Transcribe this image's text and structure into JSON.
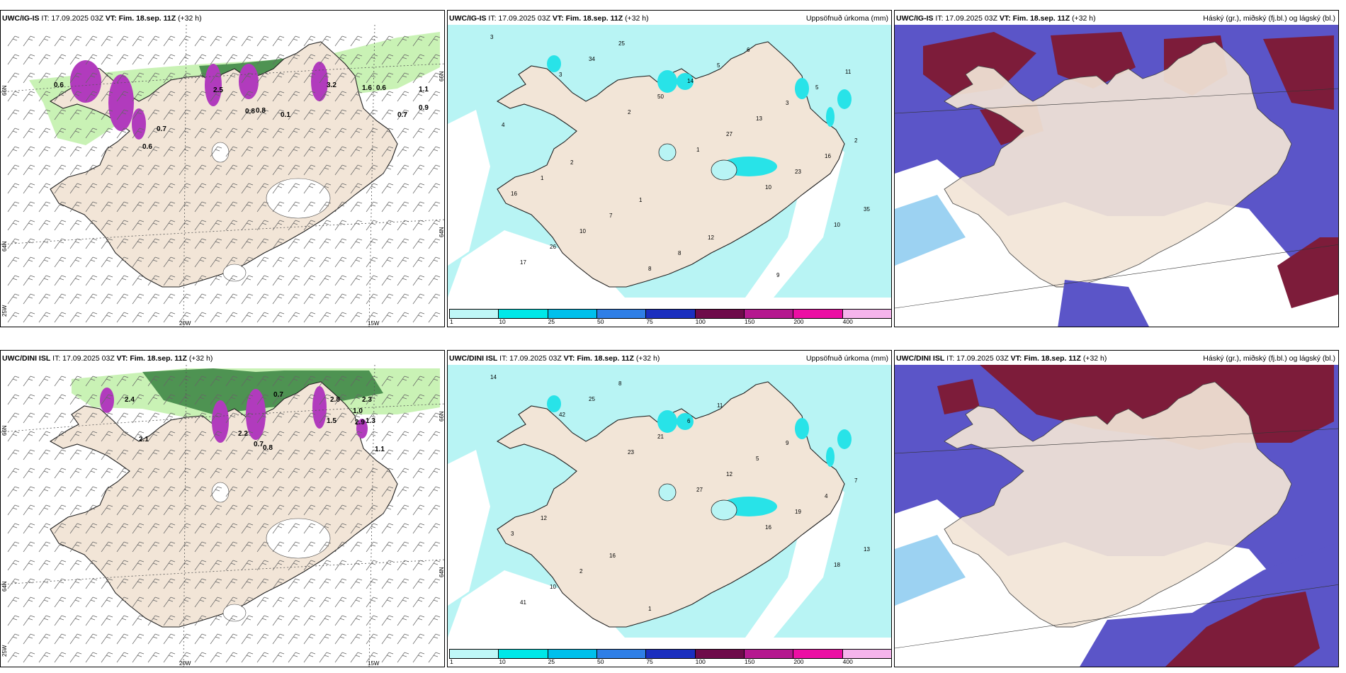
{
  "rows": [
    {
      "model": "UWC/IG-IS",
      "it": "IT: 17.09.2025 03Z",
      "vt": "VT: Fim. 18.sep. 11Z",
      "lead": "(+32 h)",
      "wind_values": [
        "0.6",
        "2.5",
        "3.2",
        "1.6",
        "0.6",
        "1.1",
        "0.7",
        "0.9",
        "0.8",
        "0.7",
        "0.6",
        "0.1",
        "0.8"
      ],
      "precip_values": [
        "3",
        "3",
        "2",
        "1",
        "10",
        "10",
        "17",
        "34",
        "50",
        "27",
        "23",
        "35",
        "26",
        "25",
        "14",
        "13",
        "16",
        "16",
        "10",
        "8",
        "5",
        "3",
        "2",
        "1",
        "7",
        "8",
        "6",
        "5",
        "4",
        "2",
        "1",
        "12",
        "9",
        "11"
      ]
    },
    {
      "model": "UWC/DINI ISL",
      "it": "IT: 17.09.2025 03Z",
      "vt": "VT: Fim. 18.sep. 11Z",
      "lead": "(+32 h)",
      "wind_values": [
        "2.4",
        "0.7",
        "2.8",
        "2.3",
        "1.0",
        "1.5",
        "2.9",
        "1.3",
        "1.1",
        "0.7",
        "2.2",
        "0.8",
        "2.1"
      ],
      "precip_values": [
        "14",
        "42",
        "23",
        "27",
        "16",
        "18",
        "41",
        "25",
        "21",
        "12",
        "19",
        "13",
        "10",
        "8",
        "6",
        "5",
        "4",
        "3",
        "2",
        "1",
        "11",
        "9",
        "7",
        "12",
        "16"
      ]
    }
  ],
  "labels": {
    "precip_title": "Uppsöfnuð úrkoma (mm)",
    "cloud_title": "Háský (gr.), miðský (fj.bl.) og lágský (bl.)"
  },
  "axis": {
    "lat_top": "66N",
    "lat_mid": "64N",
    "lat_bot": "25W",
    "lon_20": "20W",
    "lon_15": "15W",
    "lat_right_top": "66N",
    "lat_right_mid": "64N"
  },
  "precip_legend": {
    "ticks": [
      "1",
      "10",
      "25",
      "50",
      "75",
      "100",
      "150",
      "200",
      "400"
    ],
    "colors": [
      "#bff7f7",
      "#00e8e8",
      "#00c0ec",
      "#2f7fe6",
      "#1b2fbf",
      "#6e0b4a",
      "#b5188f",
      "#ec0fa4",
      "#f5b4ec"
    ]
  },
  "colors": {
    "land": "#f2e5d7",
    "precip_fill": "#b8f4f4",
    "cloud_high": "#7d1c3a",
    "cloud_mid": "#5b55c8",
    "cloud_low": "#9cd2f2",
    "green_light": "#c9f2b5",
    "green_dark": "#2f7a3a",
    "magenta": "#b13bbd"
  }
}
